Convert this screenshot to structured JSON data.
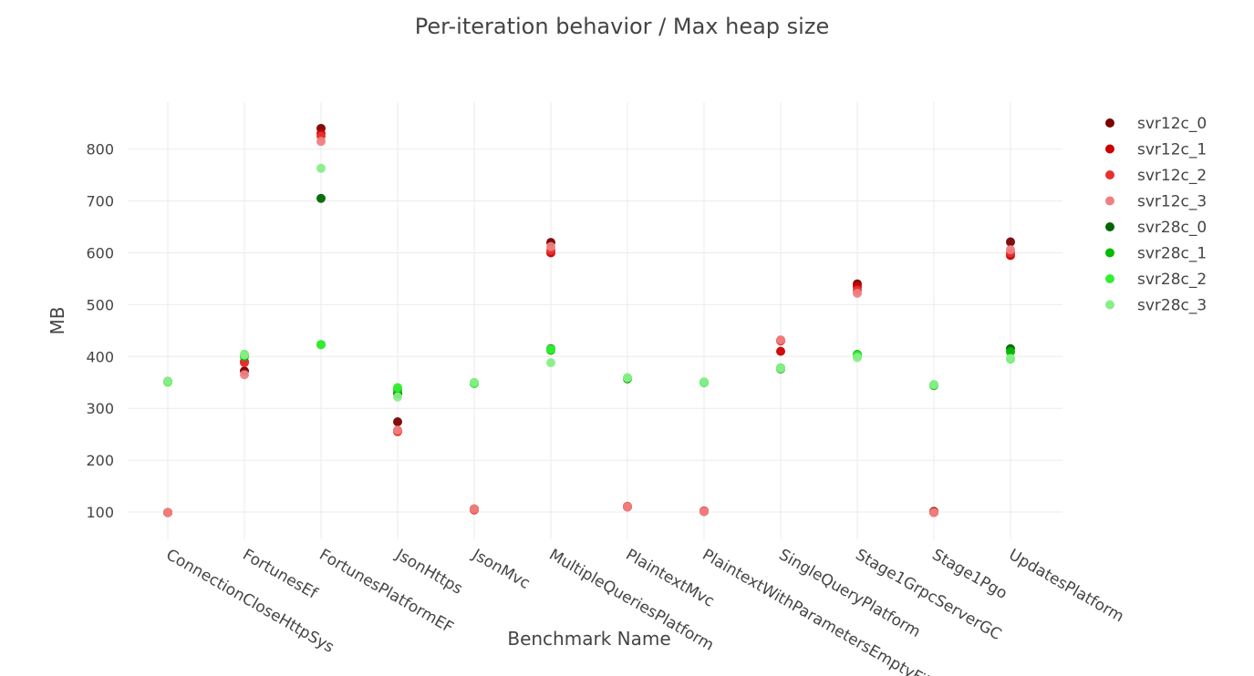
{
  "chart_data": {
    "type": "scatter",
    "title": "Per-iteration behavior / Max heap size",
    "xlabel": "Benchmark Name",
    "ylabel": "MB",
    "ylim": [
      30,
      890
    ],
    "yticks": [
      100,
      200,
      300,
      400,
      500,
      600,
      700,
      800
    ],
    "grid": true,
    "legend_position": "top-right",
    "categories": [
      "ConnectionCloseHttpSys",
      "FortunesEf",
      "FortunesPlatformEF",
      "JsonHttps",
      "JsonMvc",
      "MultipleQueriesPlatform",
      "PlaintextMvc",
      "PlaintextWithParametersEmptyFilter",
      "SingleQueryPlatform",
      "Stage1GrpcServerGC",
      "Stage1Pgo",
      "UpdatesPlatform"
    ],
    "series": [
      {
        "name": "svr12c_0",
        "color": "#7a0000",
        "values": [
          99,
          372,
          840,
          274,
          106,
          620,
          110,
          102,
          431,
          540,
          101,
          621
        ]
      },
      {
        "name": "svr12c_1",
        "color": "#cc0000",
        "values": [
          99,
          390,
          830,
          256,
          105,
          600,
          110,
          101,
          410,
          535,
          100,
          595
        ]
      },
      {
        "name": "svr12c_2",
        "color": "#e83030",
        "values": [
          99,
          388,
          825,
          255,
          104,
          605,
          111,
          102,
          430,
          528,
          99,
          600
        ]
      },
      {
        "name": "svr12c_3",
        "color": "#f08080",
        "values": [
          99,
          365,
          815,
          258,
          106,
          612,
          110,
          101,
          432,
          522,
          99,
          606
        ]
      },
      {
        "name": "svr28c_0",
        "color": "#006600",
        "values": [
          352,
          402,
          705,
          328,
          349,
          415,
          357,
          350,
          376,
          403,
          345,
          415
        ]
      },
      {
        "name": "svr28c_1",
        "color": "#00bb00",
        "values": [
          351,
          400,
          423,
          335,
          348,
          412,
          358,
          350,
          377,
          404,
          344,
          409
        ]
      },
      {
        "name": "svr28c_2",
        "color": "#33ee33",
        "values": [
          351,
          404,
          423,
          340,
          349,
          414,
          359,
          350,
          378,
          402,
          345,
          395
        ]
      },
      {
        "name": "svr28c_3",
        "color": "#88ee88",
        "values": [
          352,
          403,
          763,
          322,
          350,
          388,
          359,
          351,
          377,
          398,
          346,
          396
        ]
      }
    ]
  }
}
